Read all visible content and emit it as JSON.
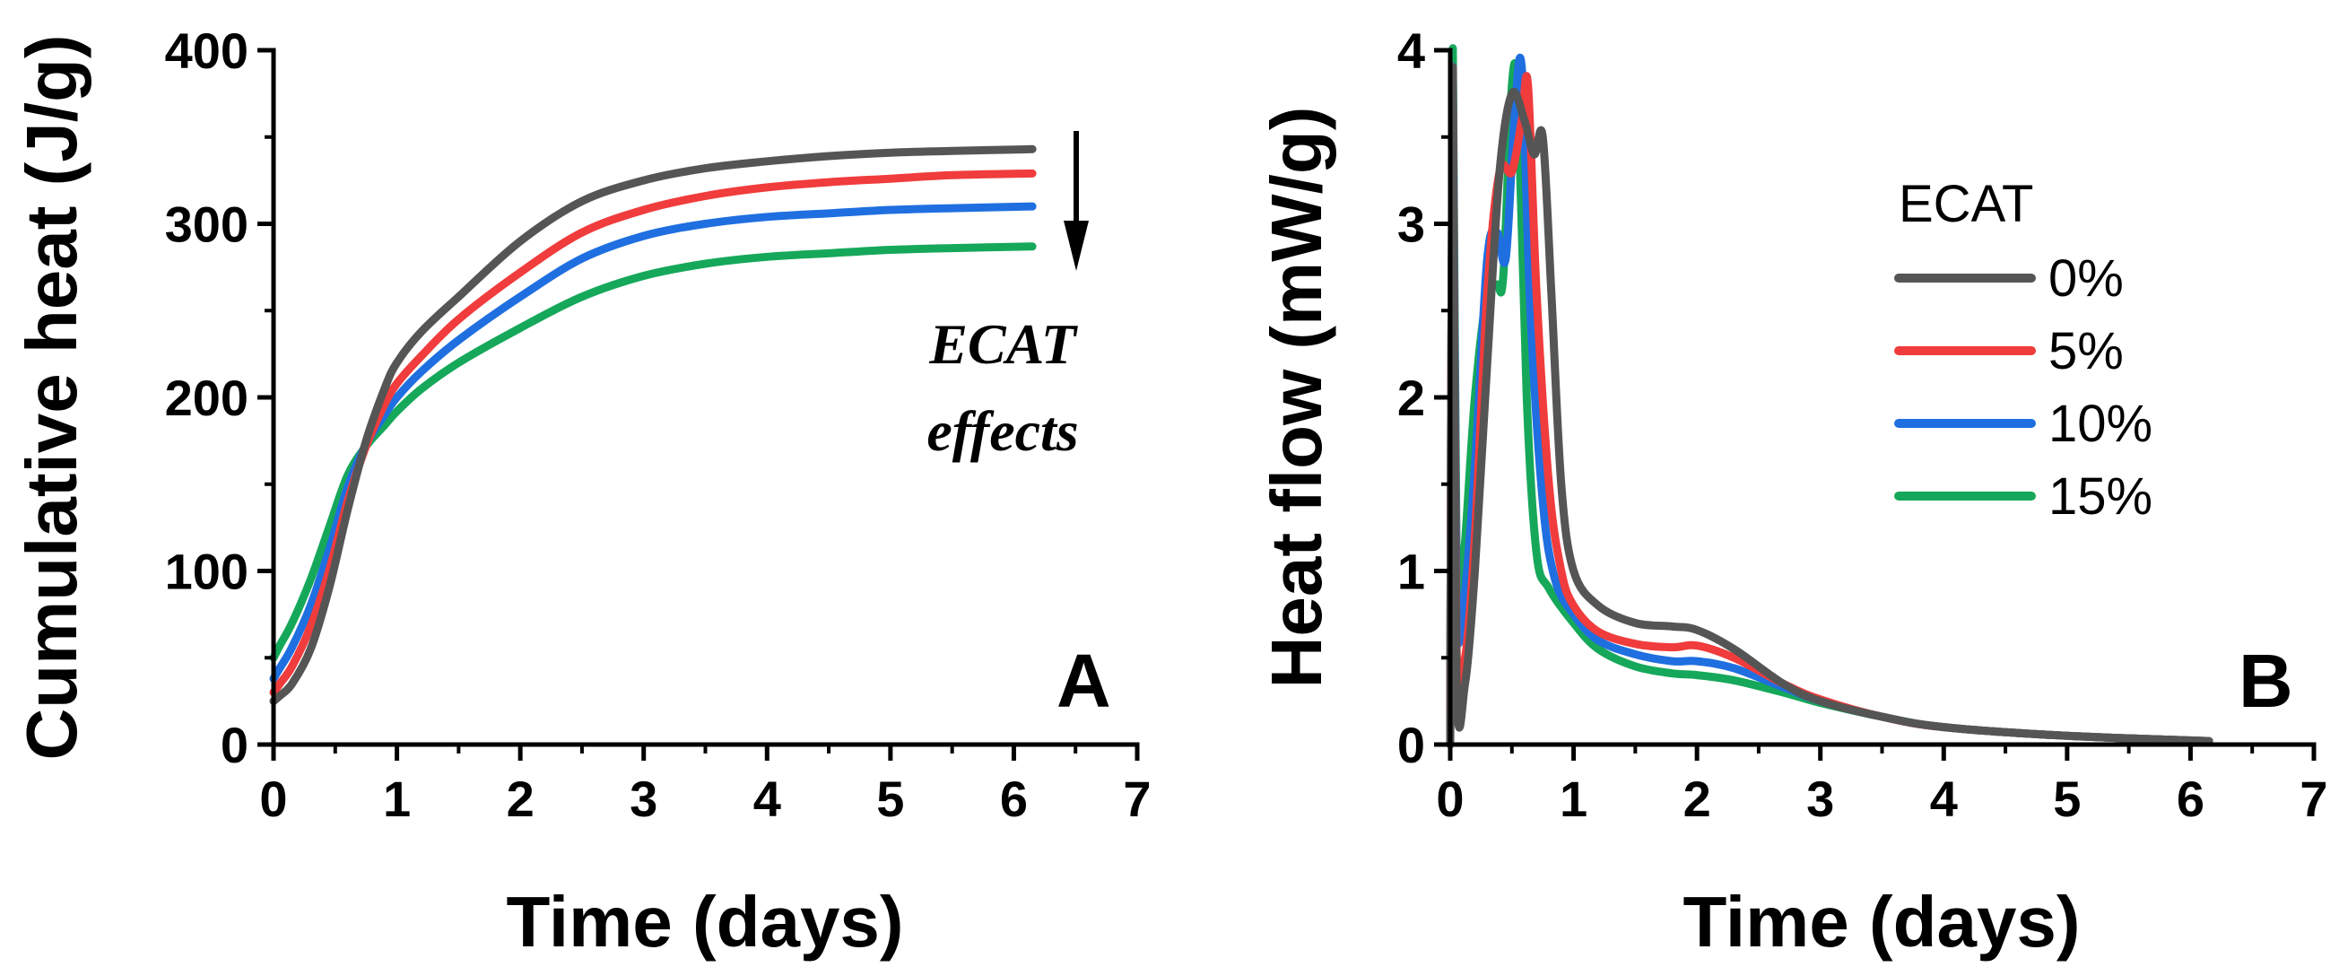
{
  "chart_data": [
    {
      "panel": "A",
      "type": "line",
      "title": "",
      "xlabel": "Time (days)",
      "ylabel": "Cumulative heat (J/g)",
      "xlim": [
        0,
        7
      ],
      "ylim": [
        0,
        400
      ],
      "xticks": [
        "0",
        "1",
        "2",
        "3",
        "4",
        "5",
        "6",
        "7"
      ],
      "yticks": [
        "0",
        "100",
        "200",
        "300",
        "400"
      ],
      "annotation": [
        "ECAT",
        "effects"
      ],
      "series": [
        {
          "name": "0%",
          "color": "#555555",
          "x": [
            0,
            0.05,
            0.15,
            0.3,
            0.45,
            0.6,
            0.75,
            0.9,
            1.0,
            1.2,
            1.5,
            2.0,
            2.5,
            3.0,
            3.5,
            4.0,
            4.5,
            5.0,
            5.5,
            6.15
          ],
          "y": [
            25,
            28,
            35,
            55,
            90,
            135,
            175,
            205,
            220,
            238,
            258,
            290,
            313,
            325,
            332,
            336,
            339,
            341,
            342,
            343
          ]
        },
        {
          "name": "5%",
          "color": "#f03c3c",
          "x": [
            0,
            0.05,
            0.15,
            0.3,
            0.45,
            0.6,
            0.75,
            0.9,
            1.0,
            1.2,
            1.5,
            2.0,
            2.5,
            3.0,
            3.5,
            4.0,
            4.5,
            5.0,
            5.5,
            6.15
          ],
          "y": [
            30,
            35,
            45,
            68,
            100,
            140,
            172,
            196,
            208,
            224,
            245,
            272,
            295,
            308,
            316,
            321,
            324,
            326,
            328,
            329
          ]
        },
        {
          "name": "10%",
          "color": "#1f6fe0",
          "x": [
            0,
            0.05,
            0.15,
            0.3,
            0.45,
            0.6,
            0.75,
            0.9,
            1.0,
            1.2,
            1.5,
            2.0,
            2.5,
            3.0,
            3.5,
            4.0,
            4.5,
            5.0,
            5.5,
            6.15
          ],
          "y": [
            38,
            44,
            56,
            80,
            112,
            148,
            173,
            190,
            200,
            215,
            233,
            258,
            280,
            293,
            300,
            304,
            306,
            308,
            309,
            310
          ]
        },
        {
          "name": "15%",
          "color": "#16a85a",
          "x": [
            0,
            0.05,
            0.15,
            0.3,
            0.45,
            0.6,
            0.75,
            0.9,
            1.0,
            1.2,
            1.5,
            2.0,
            2.5,
            3.0,
            3.5,
            4.0,
            4.5,
            5.0,
            5.5,
            6.15
          ],
          "y": [
            50,
            57,
            70,
            95,
            125,
            155,
            172,
            184,
            192,
            205,
            220,
            240,
            258,
            270,
            277,
            281,
            283,
            285,
            286,
            287
          ]
        }
      ]
    },
    {
      "panel": "B",
      "type": "line",
      "title": "",
      "xlabel": "Time (days)",
      "ylabel": "Heat flow (mW/g)",
      "xlim": [
        0,
        7
      ],
      "ylim": [
        0,
        4
      ],
      "xticks": [
        "0",
        "1",
        "2",
        "3",
        "4",
        "5",
        "6",
        "7"
      ],
      "yticks": [
        "0",
        "1",
        "2",
        "3",
        "4"
      ],
      "legend_title": "ECAT",
      "series": [
        {
          "name": "0%",
          "color": "#555555",
          "x": [
            0,
            0.02,
            0.05,
            0.12,
            0.2,
            0.3,
            0.4,
            0.5,
            0.6,
            0.68,
            0.75,
            0.82,
            0.9,
            1.0,
            1.2,
            1.5,
            1.8,
            2.0,
            2.3,
            2.7,
            3.0,
            3.5,
            4.0,
            5.0,
            6.15
          ],
          "y": [
            0,
            3.9,
            0.4,
            0.35,
            1.0,
            2.2,
            3.3,
            3.75,
            3.6,
            3.4,
            3.5,
            2.6,
            1.5,
            1.0,
            0.8,
            0.7,
            0.68,
            0.66,
            0.55,
            0.35,
            0.25,
            0.16,
            0.1,
            0.05,
            0.02
          ]
        },
        {
          "name": "5%",
          "color": "#f03c3c",
          "x": [
            0,
            0.02,
            0.05,
            0.12,
            0.2,
            0.3,
            0.4,
            0.5,
            0.58,
            0.63,
            0.7,
            0.8,
            0.9,
            1.0,
            1.2,
            1.5,
            1.8,
            2.0,
            2.3,
            2.7,
            3.0,
            3.5,
            4.0,
            5.0,
            6.15
          ],
          "y": [
            0,
            3.9,
            0.6,
            0.5,
            1.2,
            2.6,
            3.3,
            3.3,
            3.6,
            3.8,
            2.6,
            1.5,
            1.0,
            0.8,
            0.65,
            0.58,
            0.56,
            0.57,
            0.5,
            0.35,
            0.26,
            0.16,
            0.1,
            0.05,
            0.02
          ]
        },
        {
          "name": "10%",
          "color": "#1f6fe0",
          "x": [
            0,
            0.02,
            0.05,
            0.1,
            0.2,
            0.3,
            0.38,
            0.45,
            0.52,
            0.58,
            0.65,
            0.75,
            0.85,
            1.0,
            1.2,
            1.5,
            1.8,
            2.0,
            2.3,
            2.7,
            3.0,
            3.5,
            4.0,
            5.0,
            6.15
          ],
          "y": [
            0,
            3.9,
            0.9,
            0.75,
            1.6,
            2.8,
            2.95,
            2.8,
            3.6,
            3.9,
            2.5,
            1.4,
            0.95,
            0.75,
            0.6,
            0.52,
            0.48,
            0.48,
            0.44,
            0.33,
            0.25,
            0.16,
            0.1,
            0.05,
            0.02
          ]
        },
        {
          "name": "15%",
          "color": "#16a85a",
          "x": [
            0,
            0.02,
            0.05,
            0.1,
            0.2,
            0.3,
            0.38,
            0.43,
            0.5,
            0.55,
            0.62,
            0.7,
            0.8,
            1.0,
            1.2,
            1.5,
            1.8,
            2.0,
            2.3,
            2.7,
            3.0,
            3.5,
            4.0,
            5.0,
            6.15
          ],
          "y": [
            0,
            4.0,
            1.2,
            1.0,
            2.0,
            2.6,
            2.65,
            2.7,
            3.8,
            3.7,
            2.0,
            1.1,
            0.9,
            0.7,
            0.55,
            0.45,
            0.41,
            0.4,
            0.37,
            0.3,
            0.24,
            0.16,
            0.1,
            0.05,
            0.02
          ]
        }
      ]
    }
  ]
}
